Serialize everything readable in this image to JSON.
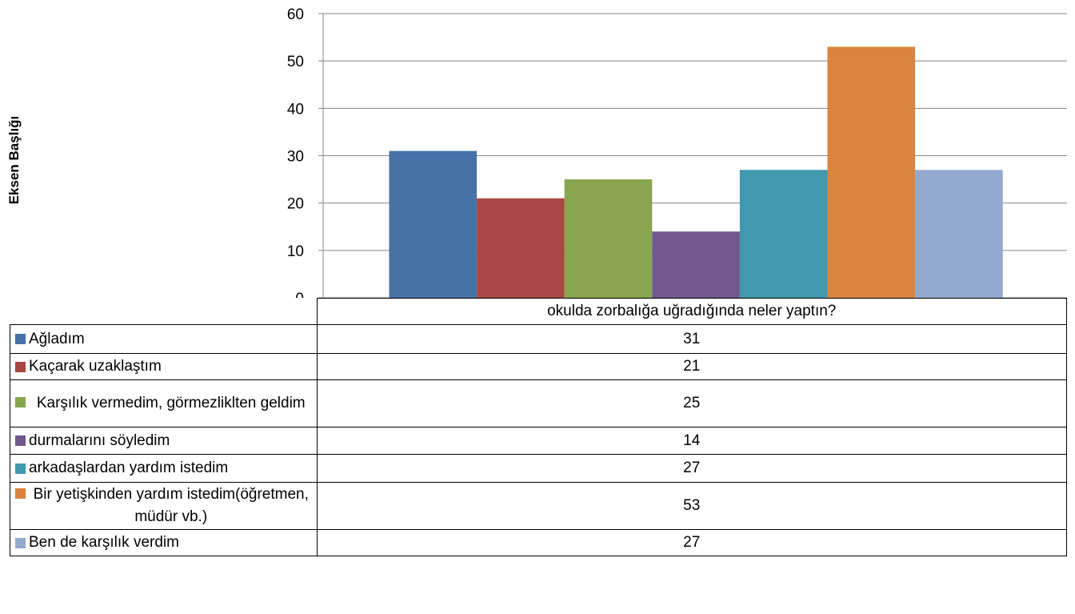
{
  "chart_data": {
    "type": "bar",
    "xlabel": "okulda zorbalığa uğradığında neler yaptın?",
    "ylabel": "Eksen Başlığı",
    "ylim": [
      0,
      60
    ],
    "yticks": [
      "0",
      "10",
      "20",
      "30",
      "40",
      "50",
      "60"
    ],
    "grid": true,
    "legend": "data-table",
    "series": [
      {
        "name": "Ağladım",
        "value": 31,
        "color": "#4572A7"
      },
      {
        "name": "Kaçarak uzaklaştım",
        "value": 21,
        "color": "#AA4643"
      },
      {
        "name": "Karşılık vermedim, görmezliklten geldim",
        "value": 25,
        "color": "#89A54E"
      },
      {
        "name": "durmalarını söyledim",
        "value": 14,
        "color": "#71588F"
      },
      {
        "name": "arkadaşlardan yardım istedim",
        "value": 27,
        "color": "#4198AF"
      },
      {
        "name": "Bir yetişkinden yardım istedim(öğretmen, müdür vb.)",
        "value": 53,
        "color": "#DB843D"
      },
      {
        "name": "Ben de karşılık verdim",
        "value": 27,
        "color": "#93A9CF"
      }
    ]
  }
}
